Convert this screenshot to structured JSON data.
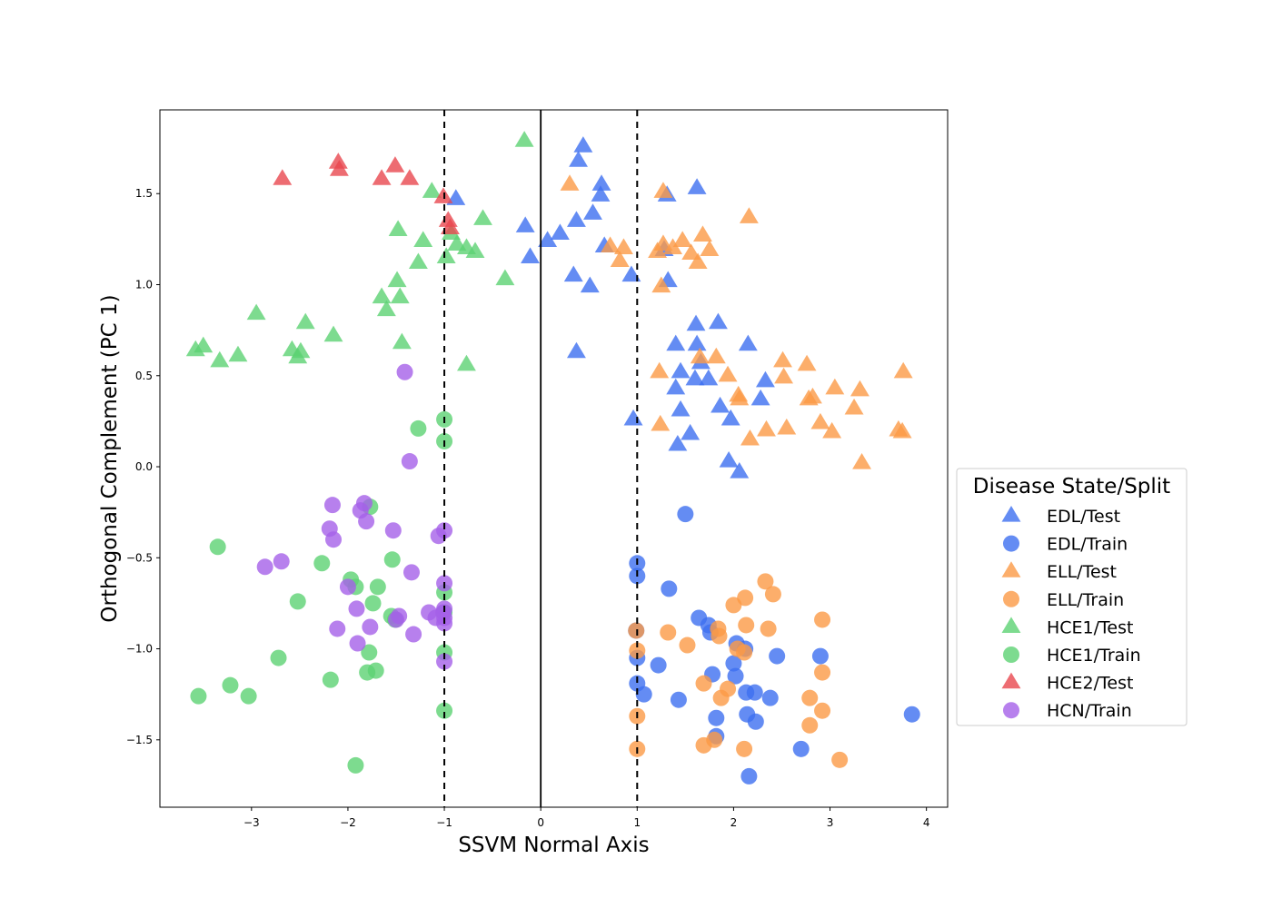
{
  "chart_data": {
    "type": "scatter",
    "title": "",
    "xlabel": "SSVM Normal Axis",
    "ylabel": "Orthogonal Complement (PC 1)",
    "xlim": [
      -3.95,
      4.22
    ],
    "ylim": [
      -1.87,
      1.96
    ],
    "xticks": [
      -3,
      -2,
      -1,
      0,
      1,
      2,
      3,
      4
    ],
    "yticks": [
      -1.5,
      -1.0,
      -0.5,
      0.0,
      0.5,
      1.0,
      1.5
    ],
    "xtick_labels": [
      "−3",
      "−2",
      "−1",
      "0",
      "1",
      "2",
      "3",
      "4"
    ],
    "ytick_labels": [
      "−1.5",
      "−1.0",
      "−0.5",
      "0.0",
      "0.5",
      "1.0",
      "1.5"
    ],
    "grid": false,
    "reference_lines": [
      {
        "x": 0,
        "style": "solid"
      },
      {
        "x": -1,
        "style": "dashed"
      },
      {
        "x": 1,
        "style": "dashed"
      }
    ],
    "legend": {
      "title": "Disease State/Split",
      "placement": "outside right"
    },
    "series": [
      {
        "name": "EDL/Test",
        "marker": "triangle",
        "color": "#3d6ff0",
        "points": [
          [
            0.44,
            1.76
          ],
          [
            0.39,
            1.68
          ],
          [
            0.63,
            1.55
          ],
          [
            0.62,
            1.49
          ],
          [
            0.54,
            1.39
          ],
          [
            0.37,
            1.35
          ],
          [
            0.2,
            1.28
          ],
          [
            0.07,
            1.24
          ],
          [
            -0.16,
            1.32
          ],
          [
            -0.11,
            1.15
          ],
          [
            0.34,
            1.05
          ],
          [
            0.51,
            0.99
          ],
          [
            0.94,
            1.05
          ],
          [
            0.66,
            1.21
          ],
          [
            -0.88,
            1.47
          ],
          [
            1.31,
            1.49
          ],
          [
            1.62,
            1.53
          ],
          [
            1.28,
            1.19
          ],
          [
            1.32,
            1.02
          ],
          [
            0.37,
            0.63
          ],
          [
            1.61,
            0.78
          ],
          [
            1.84,
            0.79
          ],
          [
            2.15,
            0.67
          ],
          [
            1.4,
            0.67
          ],
          [
            1.62,
            0.67
          ],
          [
            1.66,
            0.57
          ],
          [
            1.45,
            0.52
          ],
          [
            1.6,
            0.48
          ],
          [
            1.74,
            0.48
          ],
          [
            1.4,
            0.43
          ],
          [
            2.33,
            0.47
          ],
          [
            2.28,
            0.37
          ],
          [
            1.45,
            0.31
          ],
          [
            1.86,
            0.33
          ],
          [
            1.97,
            0.26
          ],
          [
            0.96,
            0.26
          ],
          [
            1.55,
            0.18
          ],
          [
            1.42,
            0.12
          ],
          [
            1.95,
            0.03
          ],
          [
            2.06,
            -0.03
          ]
        ]
      },
      {
        "name": "EDL/Train",
        "marker": "circle",
        "color": "#3d6ff0",
        "points": [
          [
            1.5,
            -0.26
          ],
          [
            1.0,
            -0.53
          ],
          [
            1.0,
            -0.6
          ],
          [
            1.33,
            -0.67
          ],
          [
            1.64,
            -0.83
          ],
          [
            1.74,
            -0.87
          ],
          [
            1.76,
            -0.91
          ],
          [
            0.99,
            -0.9
          ],
          [
            1.0,
            -1.05
          ],
          [
            2.03,
            -0.97
          ],
          [
            2.12,
            -1.0
          ],
          [
            2.45,
            -1.04
          ],
          [
            2.9,
            -1.04
          ],
          [
            1.22,
            -1.09
          ],
          [
            2.0,
            -1.08
          ],
          [
            1.78,
            -1.14
          ],
          [
            2.02,
            -1.15
          ],
          [
            1.0,
            -1.19
          ],
          [
            1.07,
            -1.25
          ],
          [
            2.13,
            -1.24
          ],
          [
            2.22,
            -1.24
          ],
          [
            2.38,
            -1.27
          ],
          [
            1.43,
            -1.28
          ],
          [
            1.82,
            -1.38
          ],
          [
            2.14,
            -1.36
          ],
          [
            2.23,
            -1.4
          ],
          [
            3.85,
            -1.36
          ],
          [
            1.82,
            -1.48
          ],
          [
            2.7,
            -1.55
          ],
          [
            2.16,
            -1.7
          ]
        ]
      },
      {
        "name": "ELL/Test",
        "marker": "triangle",
        "color": "#fb9a46",
        "points": [
          [
            0.3,
            1.55
          ],
          [
            1.27,
            1.51
          ],
          [
            2.16,
            1.37
          ],
          [
            0.72,
            1.21
          ],
          [
            0.86,
            1.2
          ],
          [
            0.82,
            1.13
          ],
          [
            1.21,
            1.18
          ],
          [
            1.27,
            1.22
          ],
          [
            1.37,
            1.2
          ],
          [
            1.47,
            1.24
          ],
          [
            1.56,
            1.17
          ],
          [
            1.63,
            1.12
          ],
          [
            1.68,
            1.27
          ],
          [
            1.75,
            1.19
          ],
          [
            1.25,
            0.99
          ],
          [
            1.65,
            0.6
          ],
          [
            1.82,
            0.6
          ],
          [
            1.23,
            0.52
          ],
          [
            1.94,
            0.5
          ],
          [
            2.05,
            0.39
          ],
          [
            2.06,
            0.37
          ],
          [
            2.52,
            0.49
          ],
          [
            2.51,
            0.58
          ],
          [
            2.76,
            0.56
          ],
          [
            2.78,
            0.37
          ],
          [
            2.82,
            0.38
          ],
          [
            3.05,
            0.43
          ],
          [
            3.31,
            0.42
          ],
          [
            3.25,
            0.32
          ],
          [
            2.9,
            0.24
          ],
          [
            3.02,
            0.19
          ],
          [
            2.55,
            0.21
          ],
          [
            2.34,
            0.2
          ],
          [
            2.17,
            0.15
          ],
          [
            1.24,
            0.23
          ],
          [
            3.71,
            0.2
          ],
          [
            3.75,
            0.19
          ],
          [
            3.33,
            0.02
          ],
          [
            3.76,
            0.52
          ]
        ]
      },
      {
        "name": "ELL/Train",
        "marker": "circle",
        "color": "#fb9a46",
        "points": [
          [
            2.33,
            -0.63
          ],
          [
            2.41,
            -0.7
          ],
          [
            2.12,
            -0.72
          ],
          [
            2.0,
            -0.76
          ],
          [
            2.13,
            -0.87
          ],
          [
            2.92,
            -0.84
          ],
          [
            2.36,
            -0.89
          ],
          [
            0.99,
            -0.9
          ],
          [
            1.32,
            -0.91
          ],
          [
            1.84,
            -0.89
          ],
          [
            1.85,
            -0.93
          ],
          [
            2.04,
            -1.0
          ],
          [
            2.11,
            -1.02
          ],
          [
            1.0,
            -1.01
          ],
          [
            1.52,
            -0.98
          ],
          [
            2.92,
            -1.13
          ],
          [
            1.69,
            -1.19
          ],
          [
            1.94,
            -1.22
          ],
          [
            1.87,
            -1.27
          ],
          [
            2.79,
            -1.27
          ],
          [
            1.0,
            -1.37
          ],
          [
            2.92,
            -1.34
          ],
          [
            1.8,
            -1.5
          ],
          [
            1.69,
            -1.53
          ],
          [
            2.79,
            -1.42
          ],
          [
            2.11,
            -1.55
          ],
          [
            1.0,
            -1.55
          ],
          [
            3.1,
            -1.61
          ]
        ]
      },
      {
        "name": "HCE1/Test",
        "marker": "triangle",
        "color": "#5cd273",
        "points": [
          [
            -0.17,
            1.79
          ],
          [
            -1.13,
            1.51
          ],
          [
            -0.6,
            1.36
          ],
          [
            -1.48,
            1.3
          ],
          [
            -1.22,
            1.24
          ],
          [
            -0.93,
            1.28
          ],
          [
            -0.87,
            1.22
          ],
          [
            -0.77,
            1.2
          ],
          [
            -0.68,
            1.18
          ],
          [
            -1.27,
            1.12
          ],
          [
            -0.98,
            1.15
          ],
          [
            -0.37,
            1.03
          ],
          [
            -1.49,
            1.02
          ],
          [
            -1.65,
            0.93
          ],
          [
            -1.46,
            0.93
          ],
          [
            -1.6,
            0.86
          ],
          [
            -2.95,
            0.84
          ],
          [
            -2.44,
            0.79
          ],
          [
            -2.15,
            0.72
          ],
          [
            -1.44,
            0.68
          ],
          [
            -0.77,
            0.56
          ],
          [
            -3.5,
            0.66
          ],
          [
            -3.58,
            0.64
          ],
          [
            -2.58,
            0.64
          ],
          [
            -2.49,
            0.63
          ],
          [
            -2.52,
            0.6
          ],
          [
            -3.33,
            0.58
          ],
          [
            -3.14,
            0.61
          ]
        ]
      },
      {
        "name": "HCE1/Train",
        "marker": "circle",
        "color": "#5cd273",
        "points": [
          [
            -1.0,
            0.26
          ],
          [
            -1.27,
            0.21
          ],
          [
            -1.0,
            0.14
          ],
          [
            -1.77,
            -0.22
          ],
          [
            -3.35,
            -0.44
          ],
          [
            -1.54,
            -0.51
          ],
          [
            -2.27,
            -0.53
          ],
          [
            -1.97,
            -0.62
          ],
          [
            -1.92,
            -0.66
          ],
          [
            -1.69,
            -0.66
          ],
          [
            -1.0,
            -0.69
          ],
          [
            -2.52,
            -0.74
          ],
          [
            -1.74,
            -0.75
          ],
          [
            -1.55,
            -0.82
          ],
          [
            -1.51,
            -0.84
          ],
          [
            -1.0,
            -0.8
          ],
          [
            -1.0,
            -1.02
          ],
          [
            -2.72,
            -1.05
          ],
          [
            -1.78,
            -1.02
          ],
          [
            -1.71,
            -1.12
          ],
          [
            -1.8,
            -1.13
          ],
          [
            -2.18,
            -1.17
          ],
          [
            -3.22,
            -1.2
          ],
          [
            -3.55,
            -1.26
          ],
          [
            -3.03,
            -1.26
          ],
          [
            -1.0,
            -1.34
          ],
          [
            -1.92,
            -1.64
          ]
        ]
      },
      {
        "name": "HCE2/Test",
        "marker": "triangle",
        "color": "#e8474f",
        "points": [
          [
            -2.1,
            1.67
          ],
          [
            -2.09,
            1.63
          ],
          [
            -1.51,
            1.65
          ],
          [
            -1.65,
            1.58
          ],
          [
            -1.36,
            1.58
          ],
          [
            -2.68,
            1.58
          ],
          [
            -1.01,
            1.48
          ],
          [
            -0.96,
            1.35
          ],
          [
            -0.94,
            1.31
          ]
        ]
      },
      {
        "name": "HCN/Train",
        "marker": "circle",
        "color": "#a560e8",
        "points": [
          [
            -1.41,
            0.52
          ],
          [
            -1.36,
            0.03
          ],
          [
            -2.16,
            -0.21
          ],
          [
            -1.83,
            -0.2
          ],
          [
            -1.87,
            -0.24
          ],
          [
            -1.81,
            -0.3
          ],
          [
            -2.19,
            -0.34
          ],
          [
            -2.15,
            -0.4
          ],
          [
            -1.0,
            -0.35
          ],
          [
            -1.06,
            -0.38
          ],
          [
            -1.53,
            -0.35
          ],
          [
            -2.69,
            -0.52
          ],
          [
            -2.86,
            -0.55
          ],
          [
            -1.34,
            -0.58
          ],
          [
            -1.0,
            -0.64
          ],
          [
            -2.0,
            -0.66
          ],
          [
            -1.0,
            -0.78
          ],
          [
            -1.01,
            -0.8
          ],
          [
            -1.0,
            -0.83
          ],
          [
            -1.0,
            -0.86
          ],
          [
            -1.91,
            -0.78
          ],
          [
            -1.16,
            -0.8
          ],
          [
            -1.09,
            -0.83
          ],
          [
            -1.47,
            -0.82
          ],
          [
            -1.5,
            -0.84
          ],
          [
            -1.77,
            -0.88
          ],
          [
            -2.11,
            -0.89
          ],
          [
            -1.32,
            -0.92
          ],
          [
            -1.9,
            -0.97
          ],
          [
            -1.0,
            -1.07
          ]
        ]
      }
    ]
  }
}
